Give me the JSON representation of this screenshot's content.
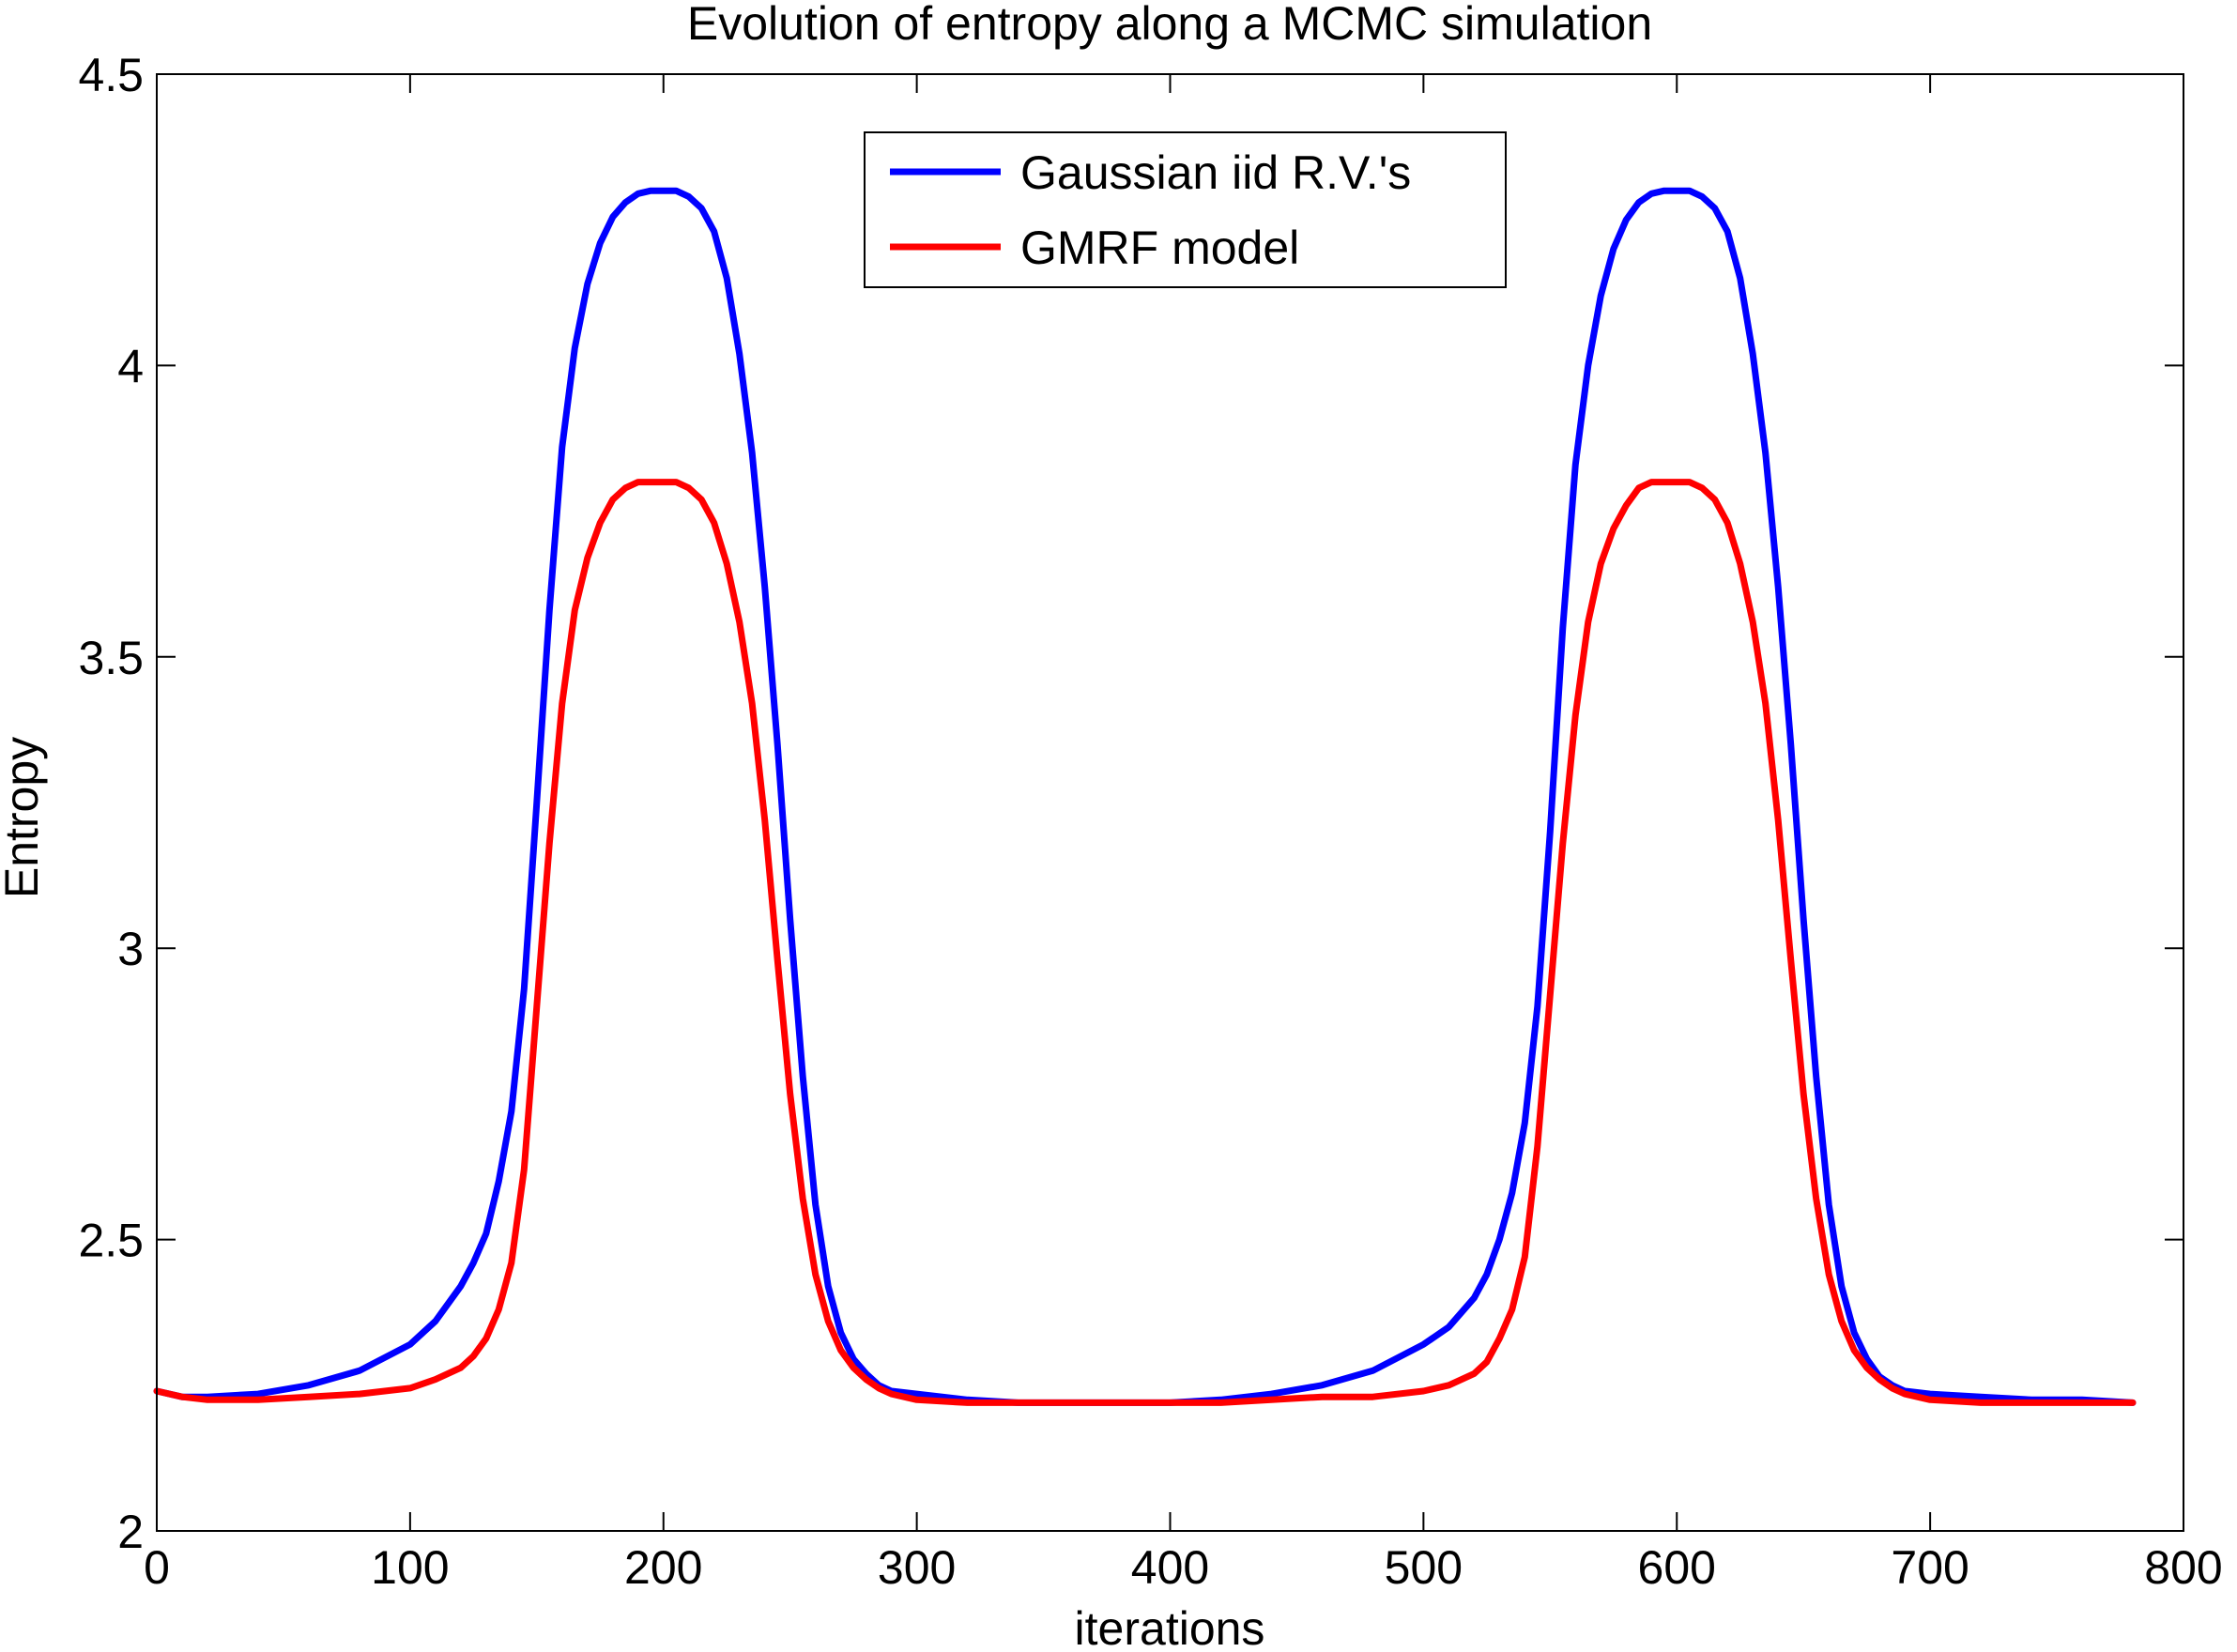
{
  "chart_data": {
    "type": "line",
    "title": "Evolution of entropy along a MCMC simulation",
    "xlabel": "iterations",
    "ylabel": "Entropy",
    "xlim": [
      0,
      800
    ],
    "ylim": [
      2,
      4.5
    ],
    "xticks": [
      0,
      100,
      200,
      300,
      400,
      500,
      600,
      700,
      800
    ],
    "yticks": [
      2,
      2.5,
      3,
      3.5,
      4,
      4.5
    ],
    "xtick_labels": [
      "0",
      "100",
      "200",
      "300",
      "400",
      "500",
      "600",
      "700",
      "800"
    ],
    "ytick_labels": [
      "2",
      "2.5",
      "3",
      "3.5",
      "4",
      "4.5"
    ],
    "grid": false,
    "legend_position": "top-center",
    "series": [
      {
        "name": "Gaussian iid R.V.'s",
        "color": "#0000ff",
        "x": [
          0,
          10,
          20,
          40,
          60,
          80,
          100,
          110,
          120,
          125,
          130,
          135,
          140,
          145,
          150,
          155,
          160,
          165,
          170,
          175,
          180,
          185,
          190,
          195,
          200,
          205,
          210,
          215,
          220,
          225,
          230,
          235,
          240,
          245,
          250,
          255,
          260,
          265,
          270,
          275,
          280,
          285,
          290,
          300,
          320,
          340,
          360,
          380,
          400,
          420,
          440,
          460,
          480,
          500,
          510,
          520,
          525,
          530,
          535,
          540,
          545,
          550,
          555,
          560,
          565,
          570,
          575,
          580,
          585,
          590,
          595,
          600,
          605,
          610,
          615,
          620,
          625,
          630,
          635,
          640,
          645,
          650,
          655,
          660,
          665,
          670,
          675,
          680,
          685,
          690,
          700,
          720,
          740,
          760,
          780
        ],
        "y": [
          2.24,
          2.23,
          2.23,
          2.235,
          2.25,
          2.275,
          2.32,
          2.36,
          2.42,
          2.46,
          2.51,
          2.6,
          2.72,
          2.93,
          3.25,
          3.58,
          3.86,
          4.03,
          4.14,
          4.21,
          4.255,
          4.28,
          4.295,
          4.3,
          4.3,
          4.3,
          4.29,
          4.27,
          4.23,
          4.15,
          4.02,
          3.85,
          3.62,
          3.35,
          3.05,
          2.78,
          2.56,
          2.42,
          2.34,
          2.295,
          2.27,
          2.25,
          2.24,
          2.235,
          2.225,
          2.22,
          2.22,
          2.22,
          2.22,
          2.225,
          2.235,
          2.25,
          2.275,
          2.32,
          2.35,
          2.4,
          2.44,
          2.5,
          2.58,
          2.7,
          2.9,
          3.2,
          3.55,
          3.83,
          4.0,
          4.12,
          4.2,
          4.25,
          4.28,
          4.295,
          4.3,
          4.3,
          4.3,
          4.29,
          4.27,
          4.23,
          4.15,
          4.02,
          3.85,
          3.62,
          3.35,
          3.05,
          2.78,
          2.56,
          2.42,
          2.34,
          2.295,
          2.265,
          2.25,
          2.24,
          2.235,
          2.23,
          2.225,
          2.225,
          2.22
        ]
      },
      {
        "name": "GMRF model",
        "color": "#ff0000",
        "x": [
          0,
          10,
          20,
          40,
          60,
          80,
          100,
          110,
          120,
          125,
          130,
          135,
          140,
          145,
          150,
          155,
          160,
          165,
          170,
          175,
          180,
          185,
          190,
          195,
          200,
          205,
          210,
          215,
          220,
          225,
          230,
          235,
          240,
          245,
          250,
          255,
          260,
          265,
          270,
          275,
          280,
          285,
          290,
          300,
          320,
          340,
          360,
          380,
          400,
          420,
          440,
          460,
          480,
          500,
          510,
          520,
          525,
          530,
          535,
          540,
          545,
          550,
          555,
          560,
          565,
          570,
          575,
          580,
          585,
          590,
          595,
          600,
          605,
          610,
          615,
          620,
          625,
          630,
          635,
          640,
          645,
          650,
          655,
          660,
          665,
          670,
          675,
          680,
          685,
          690,
          700,
          720,
          740,
          760,
          780
        ],
        "y": [
          2.24,
          2.23,
          2.225,
          2.225,
          2.23,
          2.235,
          2.245,
          2.26,
          2.28,
          2.3,
          2.33,
          2.38,
          2.46,
          2.62,
          2.9,
          3.18,
          3.42,
          3.58,
          3.67,
          3.73,
          3.77,
          3.79,
          3.8,
          3.8,
          3.8,
          3.8,
          3.79,
          3.77,
          3.73,
          3.66,
          3.56,
          3.42,
          3.22,
          2.98,
          2.75,
          2.57,
          2.44,
          2.36,
          2.31,
          2.28,
          2.26,
          2.245,
          2.235,
          2.225,
          2.22,
          2.22,
          2.22,
          2.22,
          2.22,
          2.22,
          2.225,
          2.23,
          2.23,
          2.24,
          2.25,
          2.27,
          2.29,
          2.33,
          2.38,
          2.47,
          2.66,
          2.92,
          3.18,
          3.4,
          3.56,
          3.66,
          3.72,
          3.76,
          3.79,
          3.8,
          3.8,
          3.8,
          3.8,
          3.79,
          3.77,
          3.73,
          3.66,
          3.56,
          3.42,
          3.22,
          2.98,
          2.75,
          2.57,
          2.44,
          2.36,
          2.31,
          2.28,
          2.26,
          2.245,
          2.235,
          2.225,
          2.22,
          2.22,
          2.22,
          2.22
        ]
      }
    ]
  }
}
